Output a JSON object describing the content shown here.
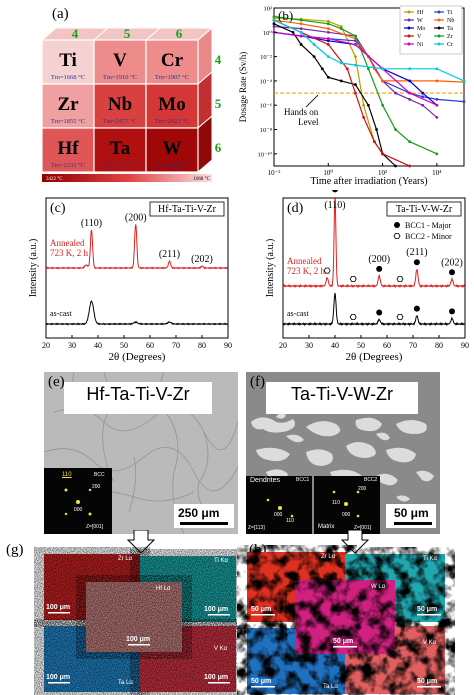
{
  "panel_labels": {
    "a": "(a)",
    "b": "(b)",
    "c": "(c)",
    "d": "(d)",
    "e": "(e)",
    "f": "(f)",
    "g": "(g)",
    "h": "(h)"
  },
  "panel_a": {
    "groups_top": [
      "4",
      "5",
      "6"
    ],
    "periods_right": [
      "4",
      "5",
      "6"
    ],
    "cells": [
      {
        "symbol": "Ti",
        "tm": "Tm=1668 °C",
        "color": "#f6d1d1"
      },
      {
        "symbol": "V",
        "tm": "Tm=1910 °C",
        "color": "#ee8c8c"
      },
      {
        "symbol": "Cr",
        "tm": "Tm=1907 °C",
        "color": "#ee8c8c"
      },
      {
        "symbol": "Zr",
        "tm": "Tm=1855 °C",
        "color": "#f0a0a0"
      },
      {
        "symbol": "Nb",
        "tm": "Tm=2477 °C",
        "color": "#d94040"
      },
      {
        "symbol": "Mo",
        "tm": "Tm=2623 °C",
        "color": "#d53636"
      },
      {
        "symbol": "Hf",
        "tm": "Tm=2233 °C",
        "color": "#e05656"
      },
      {
        "symbol": "Ta",
        "tm": "Tm=3017 °C",
        "color": "#b01010"
      },
      {
        "symbol": "W",
        "tm": "Tm=3422 °C",
        "color": "#a00808"
      }
    ],
    "colorbar_max": "3422 °C",
    "colorbar_min": "1668 °C"
  },
  "chart_data": [
    {
      "type": "line",
      "panel": "b",
      "xlabel": "Time after irradiation (Years)",
      "ylabel": "Dosage Rate (Sv/h)",
      "x_scale": "log",
      "y_scale": "log",
      "xlim": [
        0.01,
        100000
      ],
      "ylim": [
        1e-11,
        100
      ],
      "x_ticks": [
        0.01,
        1,
        100,
        10000
      ],
      "x_tick_labels": [
        "10⁻²",
        "10⁰",
        "10²",
        "10⁴"
      ],
      "y_ticks": [
        100,
        1,
        0.01,
        0.0001,
        1e-06,
        1e-08,
        1e-10
      ],
      "y_tick_labels": [
        "10²",
        "10⁰",
        "10⁻²",
        "10⁻⁴",
        "10⁻⁶",
        "10⁻⁸",
        "10⁻¹⁰"
      ],
      "annotation": "Hands on Level",
      "hands_on_level": 1e-05,
      "legend_position": "top-right",
      "series": [
        {
          "name": "Hf",
          "color": "#b5a000",
          "x": [
            0.01,
            0.1,
            1,
            3,
            10,
            20,
            50,
            100,
            1000
          ],
          "y": [
            15,
            12,
            8,
            3,
            0.01,
            1e-06,
            1e-09,
            1e-10,
            1e-11
          ]
        },
        {
          "name": "Ti",
          "color": "#2a3fd0",
          "x": [
            0.01,
            0.1,
            1,
            10,
            30,
            100,
            1000,
            3000,
            10000,
            100000
          ],
          "y": [
            1,
            0.5,
            0.3,
            0.2,
            0.01,
            0.0001,
            1e-05,
            5e-06,
            3e-06,
            2e-06
          ]
        },
        {
          "name": "W",
          "color": "#7a2aa0",
          "x": [
            0.01,
            0.1,
            1,
            10,
            30,
            100,
            300,
            1000,
            3000,
            10000
          ],
          "y": [
            3,
            2,
            1,
            0.5,
            0.01,
            0.0001,
            1e-05,
            3e-06,
            1e-06,
            1e-07
          ]
        },
        {
          "name": "Nb",
          "color": "#ff6000",
          "x": [
            0.01,
            0.1,
            1,
            10,
            30,
            50,
            100,
            1000,
            10000,
            100000
          ],
          "y": [
            10,
            5,
            2,
            0.3,
            0.01,
            0.001,
            0.0001,
            0.0001,
            0.0001,
            8e-05
          ]
        },
        {
          "name": "Mo",
          "color": "#0000cc",
          "x": [
            0.01,
            0.1,
            1,
            10,
            100,
            1000,
            3000,
            10000
          ],
          "y": [
            1,
            0.5,
            0.2,
            0.1,
            0.001,
            0.0001,
            1e-05,
            1e-06
          ]
        },
        {
          "name": "Ta",
          "color": "#000000",
          "x": [
            0.01,
            0.05,
            0.1,
            0.3,
            0.6,
            1,
            3,
            10,
            30,
            60,
            100,
            300
          ],
          "y": [
            5,
            1,
            0.1,
            0.01,
            0.001,
            0.0002,
            0.0001,
            5e-05,
            1e-06,
            1e-08,
            1e-10,
            1e-11
          ]
        },
        {
          "name": "V",
          "color": "#d01010",
          "x": [
            0.01,
            0.1,
            1,
            5,
            10,
            20,
            50,
            100,
            1000
          ],
          "y": [
            10,
            1,
            0.1,
            0.001,
            1e-05,
            1e-07,
            1e-09,
            1e-10,
            1e-11
          ]
        },
        {
          "name": "Zr",
          "color": "#1a9a1a",
          "x": [
            0.01,
            0.1,
            1,
            3,
            10,
            30,
            100,
            300,
            1000,
            10000
          ],
          "y": [
            20,
            10,
            5,
            2,
            0.5,
            0.001,
            1e-06,
            1e-08,
            1e-09,
            1e-10
          ]
        },
        {
          "name": "Ni",
          "color": "#d000d0",
          "x": [
            0.01,
            0.1,
            1,
            10,
            100,
            1000,
            10000
          ],
          "y": [
            1,
            0.5,
            0.3,
            0.1,
            0.001,
            1e-05,
            1e-06
          ]
        },
        {
          "name": "Cr",
          "color": "#00c8e0",
          "x": [
            0.01,
            0.1,
            0.3,
            1,
            3,
            10,
            100,
            1000,
            10000,
            100000
          ],
          "y": [
            10,
            1,
            0.1,
            0.01,
            0.003,
            0.002,
            0.001,
            0.001,
            0.001,
            0.0001
          ]
        }
      ]
    },
    {
      "type": "line",
      "panel": "c",
      "xlabel": "2θ (Degrees)",
      "ylabel": "Intensity (a.u.)",
      "xlim": [
        20,
        90
      ],
      "x_ticks": [
        20,
        30,
        40,
        50,
        60,
        70,
        80,
        90
      ],
      "legend_title": "Hf-Ta-Ti-V-Zr",
      "peak_labels": [
        {
          "text": "(110)",
          "x": 37.5
        },
        {
          "text": "(200)",
          "x": 54.5
        },
        {
          "text": "(211)",
          "x": 67.5
        },
        {
          "text": "(202)",
          "x": 80
        }
      ],
      "series": [
        {
          "name": "Annealed 723 K, 2 h",
          "label_lines": [
            "Annealed",
            "723 K, 2 h"
          ],
          "color": "#e02020",
          "offset": 1.0,
          "peaks": [
            {
              "x": 37.5,
              "h": 1.0,
              "w": 0.6
            },
            {
              "x": 54.5,
              "h": 1.15,
              "w": 0.6
            },
            {
              "x": 67.5,
              "h": 0.18,
              "w": 0.6
            },
            {
              "x": 80,
              "h": 0.05,
              "w": 0.6
            },
            {
              "x": 35.5,
              "h": 0.08,
              "w": 0.8
            }
          ]
        },
        {
          "name": "as-cast",
          "color": "#000000",
          "offset": 0.0,
          "peaks": [
            {
              "x": 37.5,
              "h": 0.6,
              "w": 1.2
            },
            {
              "x": 54.5,
              "h": 0.05,
              "w": 1.0
            },
            {
              "x": 67.5,
              "h": 0.05,
              "w": 1.0
            }
          ]
        }
      ]
    },
    {
      "type": "line",
      "panel": "d",
      "xlabel": "2θ (Degrees)",
      "ylabel": "Intensity (a.u.)",
      "xlim": [
        20,
        90
      ],
      "x_ticks": [
        20,
        30,
        40,
        50,
        60,
        70,
        80,
        90
      ],
      "legend_title": "Ta-Ti-V-W-Zr",
      "legend_entries": [
        {
          "symbol": "filled-circle",
          "text": "BCC1 - Major"
        },
        {
          "symbol": "open-hexagon",
          "text": "BCC2 - Minor"
        }
      ],
      "peak_labels": [
        {
          "text": "(110)",
          "x": 40
        },
        {
          "text": "(200)",
          "x": 57
        },
        {
          "text": "(211)",
          "x": 71.5
        },
        {
          "text": "(202)",
          "x": 85
        }
      ],
      "series": [
        {
          "name": "Annealed 723 K, 2 h",
          "label_lines": [
            "Annealed",
            "723 K, 2 h"
          ],
          "color": "#e02020",
          "offset": 1.0,
          "peaks": [
            {
              "x": 40,
              "h": 1.6,
              "w": 0.5
            },
            {
              "x": 37,
              "h": 0.15,
              "w": 0.6
            },
            {
              "x": 57,
              "h": 0.18,
              "w": 0.6
            },
            {
              "x": 71.5,
              "h": 0.3,
              "w": 0.6
            },
            {
              "x": 85,
              "h": 0.12,
              "w": 0.6
            }
          ]
        },
        {
          "name": "as-cast",
          "color": "#000000",
          "offset": 0.0,
          "peaks": [
            {
              "x": 40,
              "h": 0.55,
              "w": 0.6
            },
            {
              "x": 57,
              "h": 0.08,
              "w": 0.6
            },
            {
              "x": 71.5,
              "h": 0.15,
              "w": 0.6
            },
            {
              "x": 85,
              "h": 0.1,
              "w": 0.6
            }
          ]
        }
      ],
      "markers": [
        {
          "series": "annealed",
          "x": 40,
          "kind": "bcc1"
        },
        {
          "series": "annealed",
          "x": 37,
          "kind": "bcc2"
        },
        {
          "series": "annealed",
          "x": 47,
          "kind": "bcc2"
        },
        {
          "series": "annealed",
          "x": 57,
          "kind": "bcc1"
        },
        {
          "series": "annealed",
          "x": 65,
          "kind": "bcc2"
        },
        {
          "series": "annealed",
          "x": 71.5,
          "kind": "bcc1"
        },
        {
          "series": "annealed",
          "x": 85,
          "kind": "bcc1"
        },
        {
          "series": "as-cast",
          "x": 47,
          "kind": "bcc2"
        },
        {
          "series": "as-cast",
          "x": 57,
          "kind": "bcc1"
        },
        {
          "series": "as-cast",
          "x": 65,
          "kind": "bcc2"
        },
        {
          "series": "as-cast",
          "x": 71.5,
          "kind": "bcc1"
        },
        {
          "series": "as-cast",
          "x": 85,
          "kind": "bcc1"
        }
      ]
    }
  ],
  "panel_e": {
    "title": "Hf-Ta-Ti-V-Zr",
    "scale_bar": "250 μm",
    "saed_label": "BCC",
    "saed_spots": [
      "110",
      "200",
      "000"
    ],
    "saed_zone": "Z=[001]"
  },
  "panel_f": {
    "title": "Ta-Ti-V-W-Zr",
    "scale_bar": "50 μm",
    "dendrites_label": "Dendrites",
    "matrix_label": "Matrix",
    "saed1_label": "BCC1",
    "saed1_spots": [
      "000",
      "110"
    ],
    "saed1_zone": "Z=[113]",
    "saed2_label": "BCC2",
    "saed2_spots": [
      "200",
      "110",
      "000"
    ],
    "saed2_zone": "Z=[001]"
  },
  "panel_g": {
    "maps": [
      {
        "label": "Zr Lα",
        "scale": "100 μm",
        "color": "#c02020"
      },
      {
        "label": "Ti Kα",
        "scale": "100 μm",
        "color": "#20a0a0"
      },
      {
        "label": "Hf Lα",
        "scale": "100 μm",
        "color": "#c08080"
      },
      {
        "label": "Ta Lα",
        "scale": "100 μm",
        "color": "#2080c0"
      },
      {
        "label": "V Kα",
        "scale": "100 μm",
        "color": "#c03040"
      }
    ]
  },
  "panel_h": {
    "maps": [
      {
        "label": "Zr Lα",
        "scale": "50 μm",
        "color": "#e03020"
      },
      {
        "label": "Ti Kα",
        "scale": "50 μm",
        "color": "#20a8b0"
      },
      {
        "label": "W Lα",
        "scale": "50 μm",
        "color": "#d02080"
      },
      {
        "label": "Ta Lα",
        "scale": "50 μm",
        "color": "#2070c0"
      },
      {
        "label": "V Kα",
        "scale": "50 μm",
        "color": "#e06060"
      }
    ]
  }
}
